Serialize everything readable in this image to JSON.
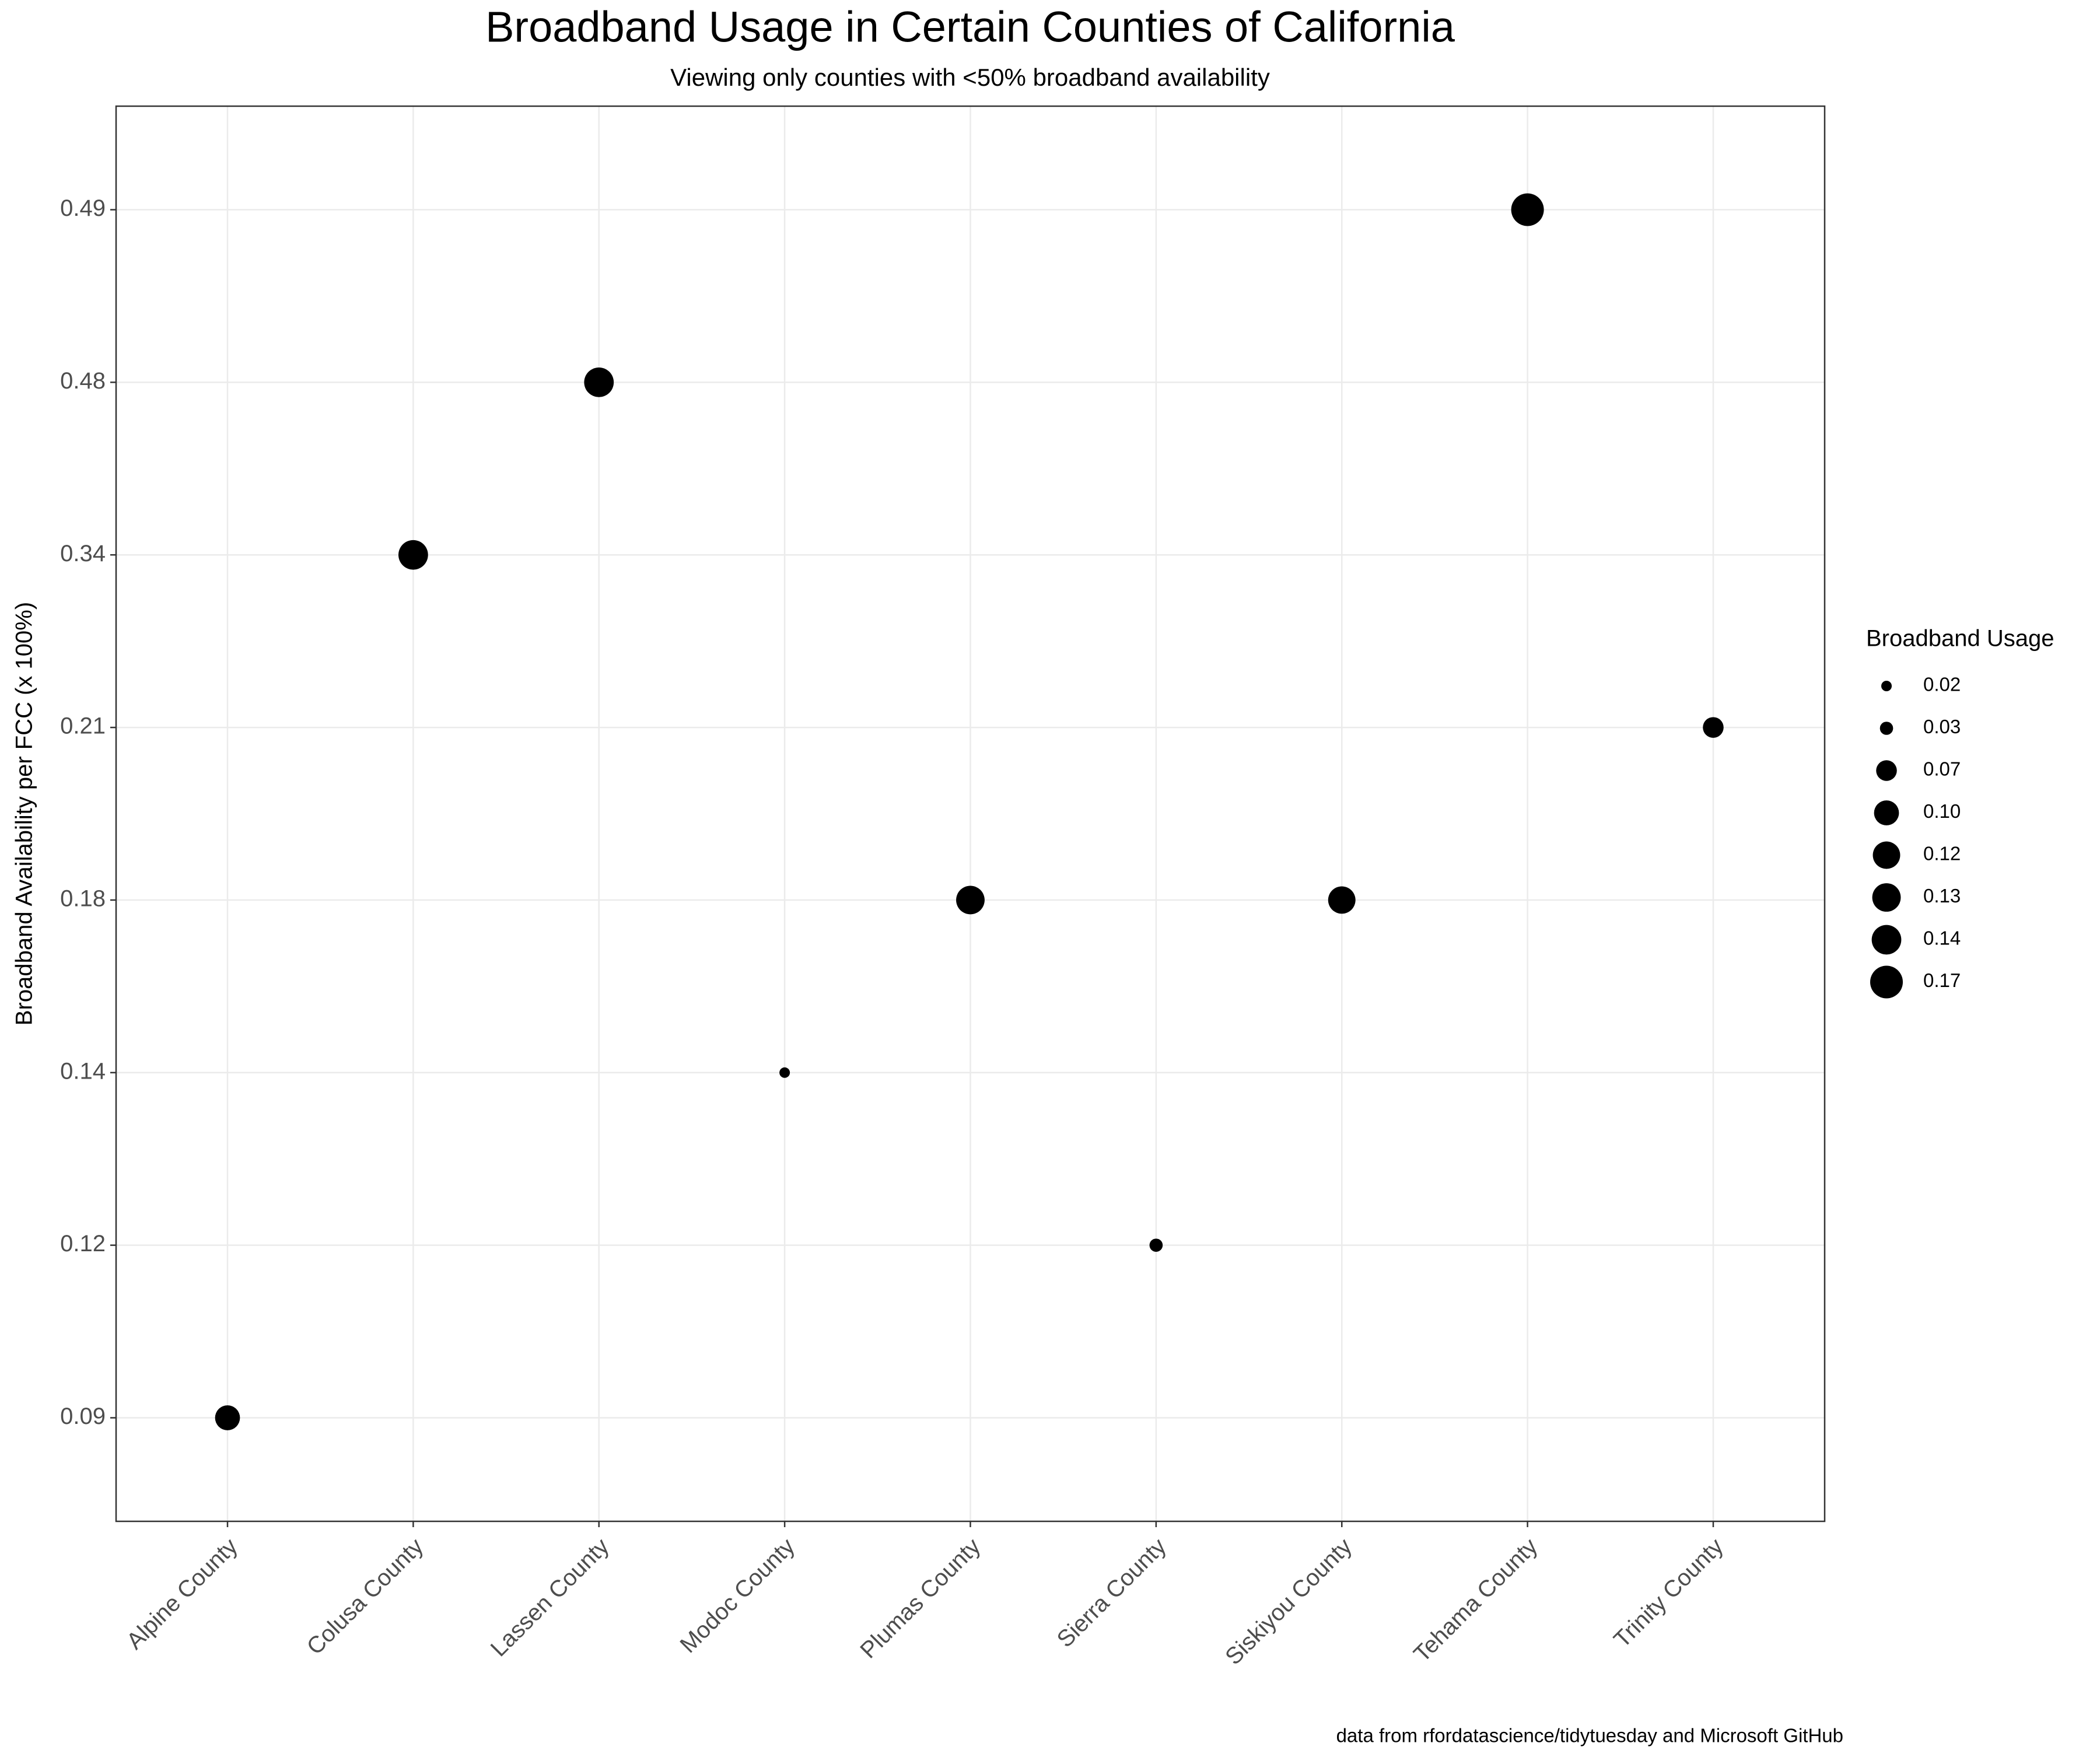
{
  "chart_data": {
    "type": "scatter",
    "title": "Broadband Usage in Certain Counties of California",
    "subtitle": "Viewing only counties with <50% broadband availability",
    "y_label": "Broadband Availability per FCC (x 100%)",
    "caption": "data from rfordatascience/tidytuesday and Microsoft GitHub",
    "categories": [
      "Alpine County",
      "Colusa County",
      "Lassen County",
      "Modoc County",
      "Plumas County",
      "Sierra County",
      "Siskiyou County",
      "Tehama County",
      "Trinity County"
    ],
    "yticks": [
      0.09,
      0.12,
      0.14,
      0.18,
      0.21,
      0.34,
      0.48,
      0.49
    ],
    "series": [
      {
        "color": "#000000",
        "values": [
          0.09,
          0.34,
          0.48,
          0.14,
          0.18,
          0.12,
          0.18,
          0.49,
          0.21
        ],
        "sizes": [
          0.1,
          0.14,
          0.14,
          0.02,
          0.13,
          0.03,
          0.12,
          0.17,
          0.07
        ]
      }
    ],
    "size_legend": {
      "title": "Broadband Usage",
      "values": [
        {
          "value": 0.02,
          "label": "0.02"
        },
        {
          "value": 0.03,
          "label": "0.03"
        },
        {
          "value": 0.07,
          "label": "0.07"
        },
        {
          "value": 0.1,
          "label": "0.10"
        },
        {
          "value": 0.12,
          "label": "0.12"
        },
        {
          "value": 0.13,
          "label": "0.13"
        },
        {
          "value": 0.14,
          "label": "0.14"
        },
        {
          "value": 0.17,
          "label": "0.17"
        }
      ]
    },
    "grid": true
  }
}
